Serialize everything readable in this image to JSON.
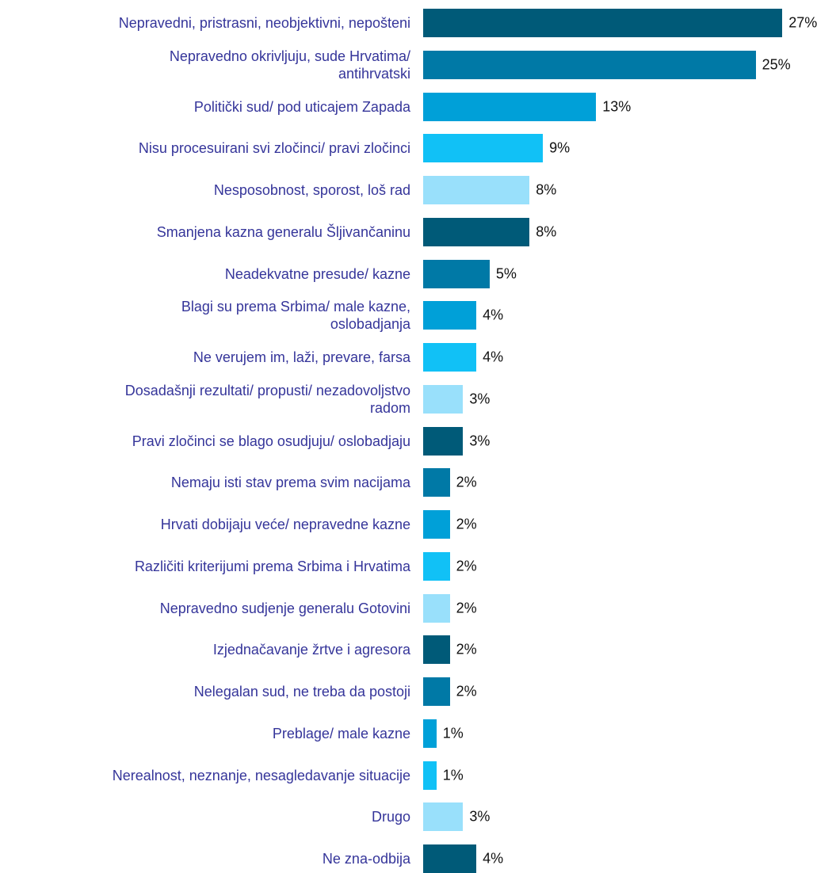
{
  "chart_data": {
    "type": "barh",
    "categories": [
      "Nepravedni, pristrasni, neobjektivni, nepošteni",
      "Nepravedno okrivljuju, sude Hrvatima/\nantihrvatski",
      "Politički sud/ pod uticajem Zapada",
      "Nisu procesuirani svi zločinci/ pravi zločinci",
      "Nesposobnost, sporost, loš rad",
      "Smanjena kazna generalu Šljivančaninu",
      "Neadekvatne presude/ kazne",
      "Blagi su prema Srbima/ male kazne,\noslobadjanja",
      "Ne verujem im, laži, prevare, farsa",
      "Dosadašnji rezultati/ propusti/ nezadovoljstvo\nradom",
      "Pravi zločinci se blago osudjuju/ oslobadjaju",
      "Nemaju isti stav prema svim nacijama",
      "Hrvati dobijaju veće/ nepravedne kazne",
      "Različiti kriterijumi prema Srbima i Hrvatima",
      "Nepravedno sudjenje generalu Gotovini",
      "Izjednačavanje žrtve i agresora",
      "Nelegalan sud, ne treba da postoji",
      "Preblage/ male kazne",
      "Nerealnost, neznanje, nesagledavanje situacije",
      "Drugo",
      "Ne zna-odbija"
    ],
    "values": [
      27,
      25,
      13,
      9,
      8,
      8,
      5,
      4,
      4,
      3,
      3,
      2,
      2,
      2,
      2,
      2,
      2,
      1,
      1,
      3,
      4
    ],
    "value_labels": [
      "27%",
      "25%",
      "13%",
      "9%",
      "8%",
      "8%",
      "5%",
      "4%",
      "4%",
      "3%",
      "3%",
      "2%",
      "2%",
      "2%",
      "2%",
      "2%",
      "2%",
      "1%",
      "1%",
      "3%",
      "4%"
    ],
    "colors": [
      "#005a78",
      "#0079a6",
      "#00a0d8",
      "#11c1f6",
      "#99e0fb",
      "#005a78",
      "#0079a6",
      "#00a0d8",
      "#11c1f6",
      "#99e0fb",
      "#005a78",
      "#0079a6",
      "#00a0d8",
      "#11c1f6",
      "#99e0fb",
      "#005a78",
      "#0079a6",
      "#00a0d8",
      "#11c1f6",
      "#99e0fb",
      "#005a78"
    ],
    "xlim": [
      0,
      28
    ]
  }
}
